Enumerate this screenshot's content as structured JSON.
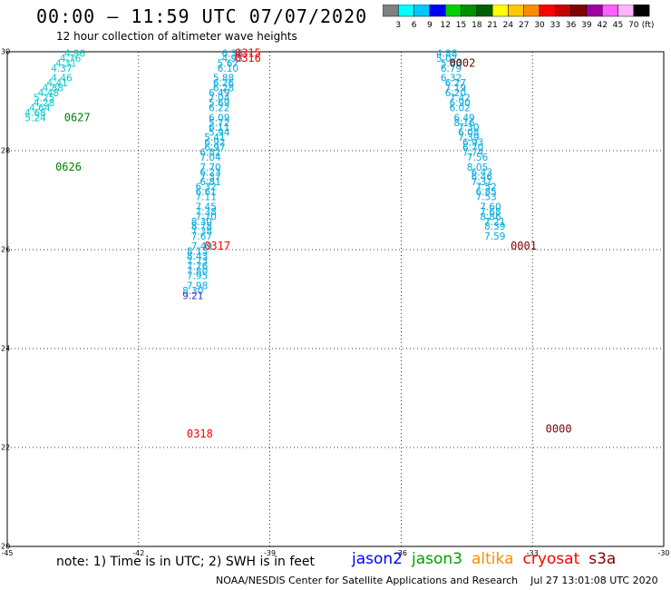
{
  "title": "00:00 – 11:59 UTC 07/07/2020",
  "subtitle": "12 hour collection of altimeter wave heights",
  "colorbar": {
    "unit": "(ft)",
    "labels": [
      "3",
      "6",
      "9",
      "12",
      "15",
      "18",
      "21",
      "24",
      "27",
      "30",
      "33",
      "36",
      "39",
      "42",
      "45",
      "70"
    ],
    "colors": [
      "#808080",
      "#00ffff",
      "#00c8ff",
      "#0000ff",
      "#00d000",
      "#009000",
      "#006000",
      "#ffff00",
      "#ffc800",
      "#ff8c00",
      "#ff0000",
      "#c80000",
      "#800000",
      "#a000a0",
      "#ff60ff",
      "#ffb4ff",
      "#000000"
    ]
  },
  "axes": {
    "lon_ticks": [
      "-45",
      "-42",
      "-39",
      "-36",
      "-33",
      "-30"
    ],
    "lat_ticks": [
      "30",
      "28",
      "26",
      "24",
      "22",
      "20"
    ],
    "lon_range": [
      -45,
      -30
    ],
    "lat_range": [
      20,
      30
    ],
    "grid": true
  },
  "note": "note: 1) Time is in UTC; 2) SWH is in feet",
  "satellites": [
    {
      "name": "jason2",
      "color": "#0000ff"
    },
    {
      "name": "jason3",
      "color": "#00a000"
    },
    {
      "name": "altika",
      "color": "#ff8c00"
    },
    {
      "name": "cryosat",
      "color": "#ff0000"
    },
    {
      "name": "s3a",
      "color": "#800000"
    }
  ],
  "credit": "NOAA/NESDIS Center for Satellite Applications and Research",
  "generated": "Jul 27 13:01:08 UTC 2020",
  "passes": [
    {
      "time": "0627",
      "color": "#008000",
      "lon": -43.7,
      "lat": 28.6
    },
    {
      "time": "0626",
      "color": "#008000",
      "lon": -43.9,
      "lat": 27.6
    },
    {
      "time": "0315",
      "color": "#ff0000",
      "lon": -39.8,
      "lat": 29.9
    },
    {
      "time": "0316",
      "color": "#ff0000",
      "lon": -39.8,
      "lat": 29.8
    },
    {
      "time": "0317",
      "color": "#ff0000",
      "lon": -40.5,
      "lat": 26.0
    },
    {
      "time": "0318",
      "color": "#ff0000",
      "lon": -40.9,
      "lat": 22.2
    },
    {
      "time": "0002",
      "color": "#800000",
      "lon": -34.9,
      "lat": 29.7
    },
    {
      "time": "0001",
      "color": "#800000",
      "lon": -33.5,
      "lat": 26.0
    },
    {
      "time": "0000",
      "color": "#800000",
      "lon": -32.7,
      "lat": 22.3
    }
  ],
  "tracks": [
    {
      "name": "jason3 track",
      "color": "#00cccc",
      "points": [
        {
          "lon": -43.7,
          "lat": 29.9,
          "v": "4.96"
        },
        {
          "lon": -43.8,
          "lat": 29.8,
          "v": "4.76"
        },
        {
          "lon": -43.9,
          "lat": 29.7,
          "v": "4.31"
        },
        {
          "lon": -44.0,
          "lat": 29.6,
          "v": "4.37"
        },
        {
          "lon": -44.0,
          "lat": 29.4,
          "v": "4.46"
        },
        {
          "lon": -44.1,
          "lat": 29.3,
          "v": "4.41"
        },
        {
          "lon": -44.2,
          "lat": 29.2,
          "v": "4.88"
        },
        {
          "lon": -44.3,
          "lat": 29.1,
          "v": "4.48"
        },
        {
          "lon": -44.4,
          "lat": 29.0,
          "v": "5.25"
        },
        {
          "lon": -44.4,
          "lat": 28.9,
          "v": "4.28"
        },
        {
          "lon": -44.5,
          "lat": 28.8,
          "v": "4.64"
        },
        {
          "lon": -44.6,
          "lat": 28.7,
          "v": "4.68"
        },
        {
          "lon": -44.6,
          "lat": 28.6,
          "v": "5.24"
        }
      ]
    },
    {
      "name": "cryosat track",
      "color": "#00aadd",
      "points": [
        {
          "lon": -40.1,
          "lat": 29.9,
          "v": "6.36"
        },
        {
          "lon": -40.1,
          "lat": 29.8,
          "v": "4.93"
        },
        {
          "lon": -40.2,
          "lat": 29.7,
          "v": "5.67"
        },
        {
          "lon": -40.2,
          "lat": 29.6,
          "v": "6.10"
        },
        {
          "lon": -40.3,
          "lat": 29.4,
          "v": "5.88"
        },
        {
          "lon": -40.3,
          "lat": 29.3,
          "v": "6.26"
        },
        {
          "lon": -40.3,
          "lat": 29.2,
          "v": "6.28"
        },
        {
          "lon": -40.4,
          "lat": 29.1,
          "v": "6.49"
        },
        {
          "lon": -40.4,
          "lat": 29.0,
          "v": "7.04"
        },
        {
          "lon": -40.4,
          "lat": 28.9,
          "v": "5.69"
        },
        {
          "lon": -40.4,
          "lat": 28.8,
          "v": "6.22"
        },
        {
          "lon": -40.4,
          "lat": 28.6,
          "v": "6.09"
        },
        {
          "lon": -40.4,
          "lat": 28.5,
          "v": "5.72"
        },
        {
          "lon": -40.4,
          "lat": 28.4,
          "v": "6.11"
        },
        {
          "lon": -40.4,
          "lat": 28.3,
          "v": "5.94"
        },
        {
          "lon": -40.5,
          "lat": 28.2,
          "v": "5.41"
        },
        {
          "lon": -40.5,
          "lat": 28.1,
          "v": "6.92"
        },
        {
          "lon": -40.5,
          "lat": 28.0,
          "v": "6.97"
        },
        {
          "lon": -40.6,
          "lat": 27.9,
          "v": "6.82"
        },
        {
          "lon": -40.6,
          "lat": 27.8,
          "v": "7.04"
        },
        {
          "lon": -40.6,
          "lat": 27.6,
          "v": "7.70"
        },
        {
          "lon": -40.6,
          "lat": 27.5,
          "v": "6.23"
        },
        {
          "lon": -40.6,
          "lat": 27.4,
          "v": "7.37"
        },
        {
          "lon": -40.6,
          "lat": 27.3,
          "v": "6.81"
        },
        {
          "lon": -40.7,
          "lat": 27.2,
          "v": "6.32"
        },
        {
          "lon": -40.7,
          "lat": 27.1,
          "v": "6.61"
        },
        {
          "lon": -40.7,
          "lat": 27.0,
          "v": "7.11"
        },
        {
          "lon": -40.7,
          "lat": 26.8,
          "v": "7.45"
        },
        {
          "lon": -40.7,
          "lat": 26.7,
          "v": "7.38"
        },
        {
          "lon": -40.7,
          "lat": 26.6,
          "v": "7.70"
        },
        {
          "lon": -40.8,
          "lat": 26.5,
          "v": "8.30"
        },
        {
          "lon": -40.8,
          "lat": 26.4,
          "v": "8.78"
        },
        {
          "lon": -40.8,
          "lat": 26.3,
          "v": "7.38"
        },
        {
          "lon": -40.8,
          "lat": 26.2,
          "v": "7.67"
        },
        {
          "lon": -40.8,
          "lat": 26.0,
          "v": "7.49"
        },
        {
          "lon": -40.9,
          "lat": 25.9,
          "v": "8.15"
        },
        {
          "lon": -40.9,
          "lat": 25.8,
          "v": "8.43"
        },
        {
          "lon": -40.9,
          "lat": 25.7,
          "v": "7.73"
        },
        {
          "lon": -40.9,
          "lat": 25.6,
          "v": "7.76"
        },
        {
          "lon": -40.9,
          "lat": 25.5,
          "v": "7.80"
        },
        {
          "lon": -40.9,
          "lat": 25.4,
          "v": "7.95"
        },
        {
          "lon": -40.9,
          "lat": 25.2,
          "v": "7.98"
        },
        {
          "lon": -41.0,
          "lat": 25.1,
          "v": "8.30"
        },
        {
          "lon": -41.0,
          "lat": 25.0,
          "v": "9.21"
        }
      ]
    },
    {
      "name": "s3a track",
      "color": "#00aadd",
      "points": [
        {
          "lon": -35.2,
          "lat": 29.9,
          "v": "4.88"
        },
        {
          "lon": -35.2,
          "lat": 29.8,
          "v": "5.02"
        },
        {
          "lon": -35.1,
          "lat": 29.7,
          "v": "5.60"
        },
        {
          "lon": -35.1,
          "lat": 29.6,
          "v": "6.79"
        },
        {
          "lon": -35.1,
          "lat": 29.4,
          "v": "6.32"
        },
        {
          "lon": -35.0,
          "lat": 29.3,
          "v": "6.27"
        },
        {
          "lon": -35.0,
          "lat": 29.2,
          "v": "7.19"
        },
        {
          "lon": -35.0,
          "lat": 29.1,
          "v": "6.20"
        },
        {
          "lon": -34.9,
          "lat": 29.0,
          "v": "7.42"
        },
        {
          "lon": -34.9,
          "lat": 28.9,
          "v": "6.90"
        },
        {
          "lon": -34.9,
          "lat": 28.8,
          "v": "6.02"
        },
        {
          "lon": -34.8,
          "lat": 28.6,
          "v": "6.49"
        },
        {
          "lon": -34.8,
          "lat": 28.5,
          "v": "8.16"
        },
        {
          "lon": -34.7,
          "lat": 28.4,
          "v": "7.30"
        },
        {
          "lon": -34.7,
          "lat": 28.3,
          "v": "6.08"
        },
        {
          "lon": -34.7,
          "lat": 28.2,
          "v": "7.39"
        },
        {
          "lon": -34.6,
          "lat": 28.1,
          "v": "6.93"
        },
        {
          "lon": -34.6,
          "lat": 28.0,
          "v": "6.70"
        },
        {
          "lon": -34.6,
          "lat": 27.9,
          "v": "7.74"
        },
        {
          "lon": -34.5,
          "lat": 27.8,
          "v": "7.56"
        },
        {
          "lon": -34.5,
          "lat": 27.6,
          "v": "8.05"
        },
        {
          "lon": -34.4,
          "lat": 27.5,
          "v": "6.43"
        },
        {
          "lon": -34.4,
          "lat": 27.4,
          "v": "6.46"
        },
        {
          "lon": -34.4,
          "lat": 27.3,
          "v": "7.31"
        },
        {
          "lon": -34.3,
          "lat": 27.2,
          "v": "7.52"
        },
        {
          "lon": -34.3,
          "lat": 27.1,
          "v": "6.85"
        },
        {
          "lon": -34.3,
          "lat": 27.0,
          "v": "7.53"
        },
        {
          "lon": -34.2,
          "lat": 26.8,
          "v": "7.60"
        },
        {
          "lon": -34.2,
          "lat": 26.7,
          "v": "7.68"
        },
        {
          "lon": -34.2,
          "lat": 26.6,
          "v": "8.86"
        },
        {
          "lon": -34.1,
          "lat": 26.5,
          "v": "7.21"
        },
        {
          "lon": -34.1,
          "lat": 26.4,
          "v": "8.39"
        },
        {
          "lon": -34.1,
          "lat": 26.2,
          "v": "7.59"
        }
      ]
    }
  ]
}
